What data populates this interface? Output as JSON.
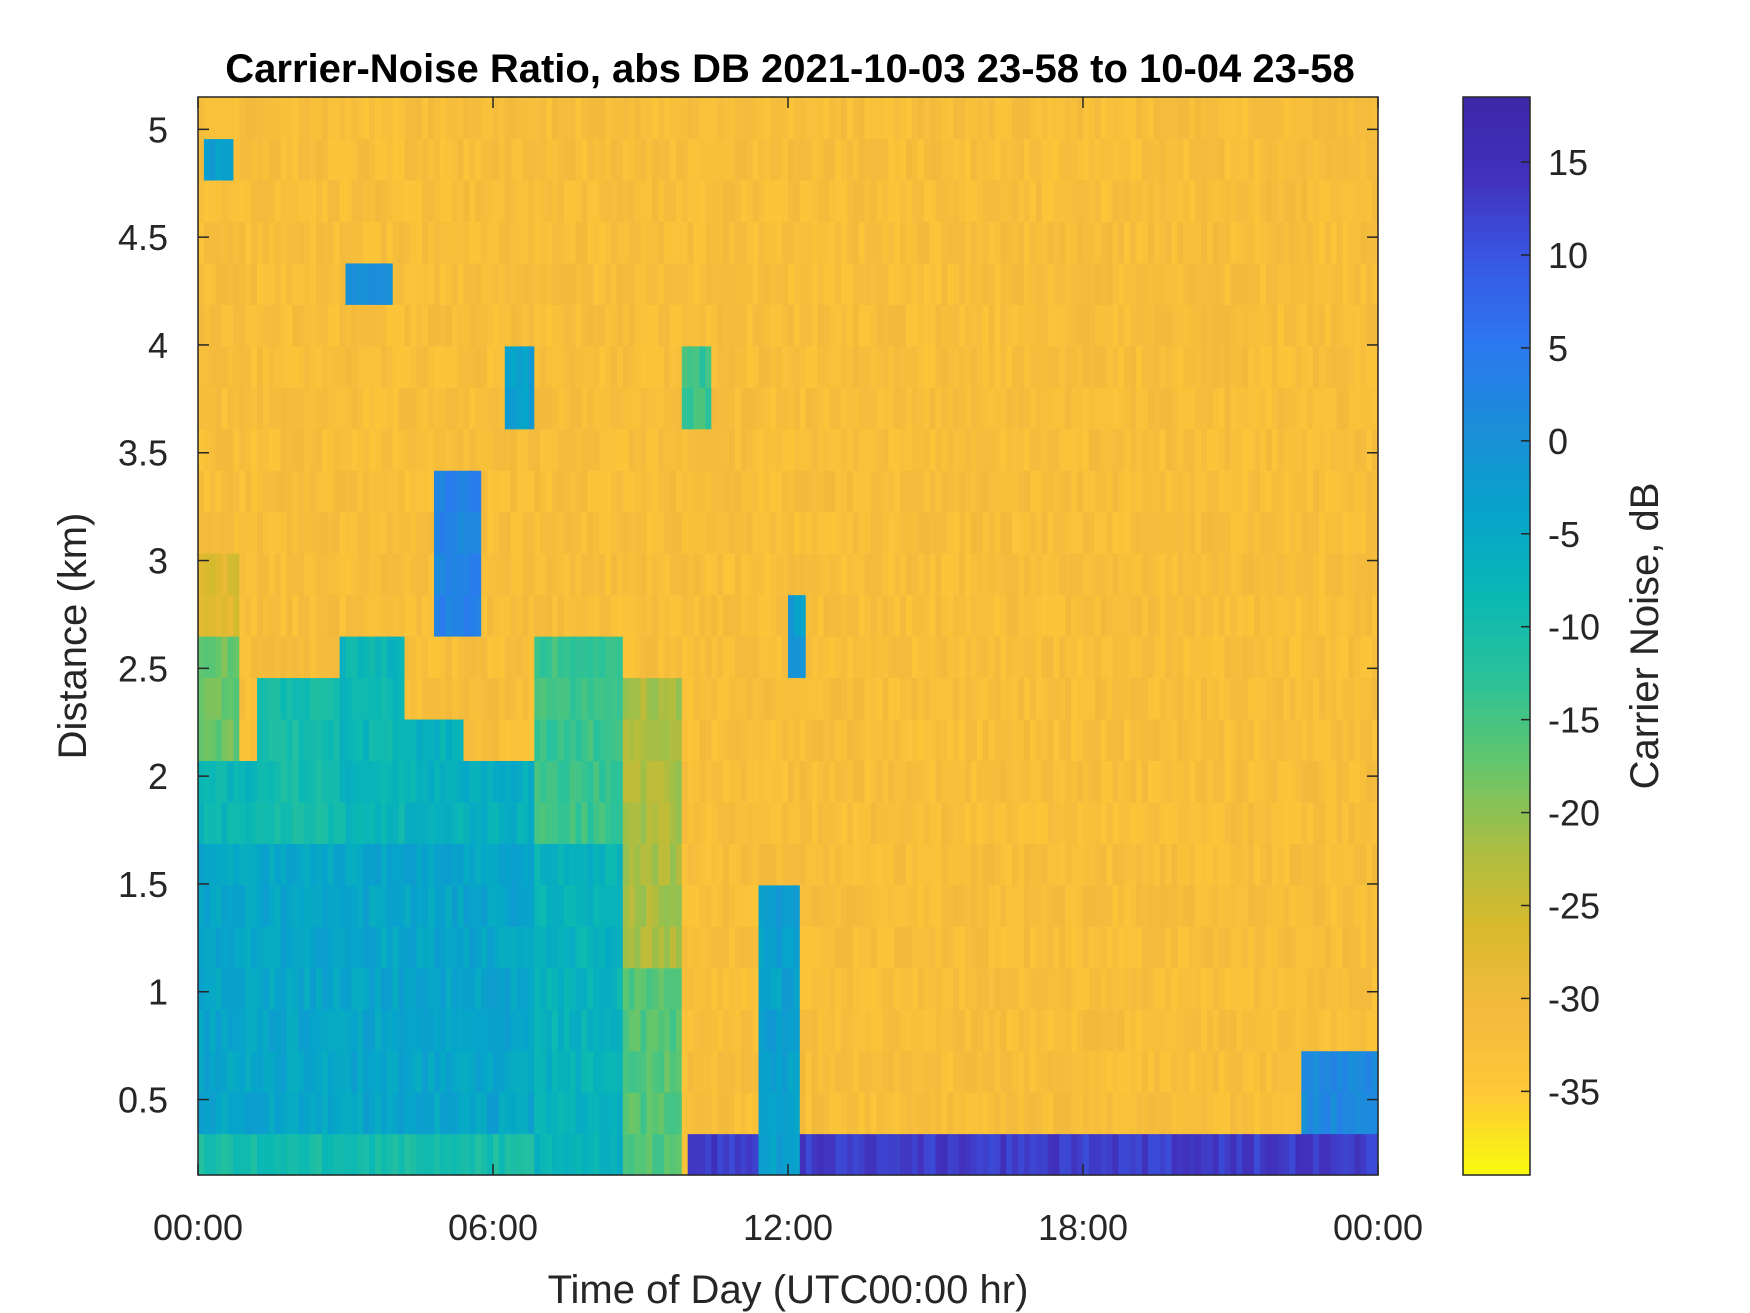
{
  "chart_data": {
    "type": "heatmap",
    "title": "Carrier-Noise Ratio, abs DB 2021-10-03 23-58 to 10-04 23-58",
    "xlabel": "Time of Day (UTC00:00 hr)",
    "ylabel": "Distance (km)",
    "colorbar_label": "Carrier Noise, dB",
    "x_range_hours": [
      0,
      24
    ],
    "y_range_km": [
      0.15,
      5.15
    ],
    "x_ticks": [
      {
        "value": 0,
        "label": "00:00"
      },
      {
        "value": 6,
        "label": "06:00"
      },
      {
        "value": 12,
        "label": "12:00"
      },
      {
        "value": 18,
        "label": "18:00"
      },
      {
        "value": 24,
        "label": "00:00"
      }
    ],
    "y_ticks": [
      {
        "value": 0.5,
        "label": "0.5"
      },
      {
        "value": 1,
        "label": "1"
      },
      {
        "value": 1.5,
        "label": "1.5"
      },
      {
        "value": 2,
        "label": "2"
      },
      {
        "value": 2.5,
        "label": "2.5"
      },
      {
        "value": 3,
        "label": "3"
      },
      {
        "value": 3.5,
        "label": "3.5"
      },
      {
        "value": 4,
        "label": "4"
      },
      {
        "value": 4.5,
        "label": "4.5"
      },
      {
        "value": 5,
        "label": "5"
      }
    ],
    "colorbar_range_db": [
      -39.5,
      18.5
    ],
    "colorbar_ticks": [
      {
        "value": 15,
        "label": "15"
      },
      {
        "value": 10,
        "label": "10"
      },
      {
        "value": 5,
        "label": "5"
      },
      {
        "value": 0,
        "label": "0"
      },
      {
        "value": -5,
        "label": "-5"
      },
      {
        "value": -10,
        "label": "-10"
      },
      {
        "value": -15,
        "label": "-15"
      },
      {
        "value": -20,
        "label": "-20"
      },
      {
        "value": -25,
        "label": "-25"
      },
      {
        "value": -30,
        "label": "-30"
      },
      {
        "value": -35,
        "label": "-35"
      }
    ],
    "colormap": [
      "#f9fb0e",
      "#fec837",
      "#f4ba3d",
      "#d9ba2c",
      "#a8be44",
      "#62c66d",
      "#2ac29a",
      "#0ab8b4",
      "#06a4ca",
      "#1a8ed8",
      "#2c79f0",
      "#3859e6",
      "#4132bd",
      "#3e26a8"
    ],
    "background_level_db": -32,
    "regions": [
      {
        "t": [
          0,
          6.8
        ],
        "d": [
          0.15,
          1.6
        ],
        "level_db": -4
      },
      {
        "t": [
          0,
          6.8
        ],
        "d": [
          0.15,
          0.4
        ],
        "level_db": -10
      },
      {
        "t": [
          0,
          1.2
        ],
        "d": [
          1.6,
          2.0
        ],
        "level_db": -8
      },
      {
        "t": [
          0,
          0.8
        ],
        "d": [
          2.0,
          2.7
        ],
        "level_db": -18
      },
      {
        "t": [
          0,
          0.8
        ],
        "d": [
          2.7,
          2.95
        ],
        "level_db": -27
      },
      {
        "t": [
          1.2,
          2.9
        ],
        "d": [
          1.6,
          2.5
        ],
        "level_db": -10
      },
      {
        "t": [
          2.9,
          4.2
        ],
        "d": [
          1.6,
          2.65
        ],
        "level_db": -8
      },
      {
        "t": [
          4.2,
          5.4
        ],
        "d": [
          1.6,
          2.3
        ],
        "level_db": -7
      },
      {
        "t": [
          5.4,
          6.8
        ],
        "d": [
          1.6,
          2.1
        ],
        "level_db": -6
      },
      {
        "t": [
          6.8,
          8.7
        ],
        "d": [
          0.15,
          1.6
        ],
        "level_db": -7
      },
      {
        "t": [
          6.8,
          8.7
        ],
        "d": [
          1.6,
          2.6
        ],
        "level_db": -14
      },
      {
        "t": [
          8.7,
          9.9
        ],
        "d": [
          0.15,
          1.2
        ],
        "level_db": -16
      },
      {
        "t": [
          8.7,
          9.9
        ],
        "d": [
          1.2,
          2.4
        ],
        "level_db": -22
      },
      {
        "t": [
          10.0,
          24
        ],
        "d": [
          0.15,
          0.27
        ],
        "level_db": 13
      },
      {
        "t": [
          12.8,
          24
        ],
        "d": [
          0.27,
          0.37
        ],
        "level_db": -8
      },
      {
        "t": [
          11.4,
          12.2
        ],
        "d": [
          0.15,
          1.5
        ],
        "level_db": -3
      },
      {
        "t": [
          22.5,
          24
        ],
        "d": [
          0.27,
          0.75
        ],
        "level_db": 2
      },
      {
        "t": [
          0.1,
          0.7
        ],
        "d": [
          4.7,
          5.05
        ],
        "level_db": -2
      },
      {
        "t": [
          3.0,
          4.0
        ],
        "d": [
          4.15,
          4.35
        ],
        "level_db": 0
      },
      {
        "t": [
          6.3,
          6.8
        ],
        "d": [
          3.65,
          3.95
        ],
        "level_db": -3
      },
      {
        "t": [
          9.8,
          10.4
        ],
        "d": [
          3.6,
          3.95
        ],
        "level_db": -14
      },
      {
        "t": [
          4.8,
          5.8
        ],
        "d": [
          2.6,
          3.5
        ],
        "level_db": 3
      },
      {
        "t": [
          12.0,
          12.3
        ],
        "d": [
          2.55,
          2.75
        ],
        "level_db": -2
      }
    ]
  }
}
